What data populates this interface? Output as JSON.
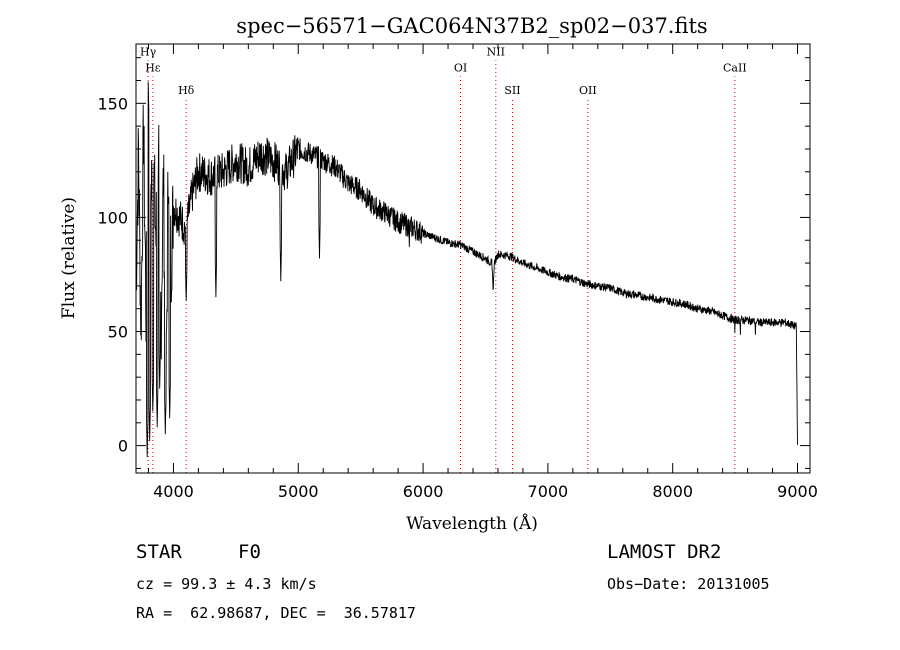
{
  "chart_data": {
    "type": "line",
    "title": "spec−56571−GAC064N37B2_sp02−037.fits",
    "xlabel": "Wavelength (Å)",
    "ylabel": "Flux (relative)",
    "xlim": [
      3700,
      9100
    ],
    "ylim": [
      -12,
      176
    ],
    "x_ticks": [
      4000,
      5000,
      6000,
      7000,
      8000,
      9000
    ],
    "y_ticks": [
      0,
      50,
      100,
      150
    ],
    "grid": false,
    "line_color": "#000000",
    "marker_color": "#cc0000",
    "spectral_lines": [
      {
        "name": "Hγ",
        "wavelength": 3797,
        "label_y": 171
      },
      {
        "name": "Hε",
        "wavelength": 3835,
        "label_y": 164
      },
      {
        "name": "Hδ",
        "wavelength": 4102,
        "label_y": 154
      },
      {
        "name": "OI",
        "wavelength": 6300,
        "label_y": 164
      },
      {
        "name": "NII",
        "wavelength": 6583,
        "label_y": 171
      },
      {
        "name": "SII",
        "wavelength": 6716,
        "label_y": 154
      },
      {
        "name": "OII",
        "wavelength": 7320,
        "label_y": 154
      },
      {
        "name": "CaII",
        "wavelength": 8498,
        "label_y": 164
      }
    ],
    "series": [
      {
        "x": [
          3700,
          3720,
          3740,
          3760,
          3780,
          3800,
          3820,
          3840,
          3860,
          3880,
          3900,
          3920,
          3940,
          3960,
          3980,
          4000,
          4050,
          4100,
          4150,
          4200,
          4300,
          4400,
          4500,
          4600,
          4700,
          4800,
          4900,
          5000,
          5100,
          5200,
          5300,
          5400,
          5500,
          5600,
          5700,
          5800,
          5900,
          6000,
          6100,
          6200,
          6300,
          6400,
          6500,
          6550,
          6562,
          6570,
          6600,
          6700,
          6800,
          6900,
          7000,
          7100,
          7200,
          7300,
          7400,
          7500,
          7600,
          7700,
          7800,
          7900,
          8000,
          8100,
          8200,
          8300,
          8400,
          8500,
          8600,
          8700,
          8800,
          8900,
          8950,
          8990,
          9000
        ],
        "y": [
          70,
          130,
          50,
          140,
          60,
          160,
          110,
          125,
          90,
          140,
          50,
          120,
          20,
          130,
          80,
          105,
          100,
          95,
          110,
          120,
          118,
          120,
          125,
          122,
          128,
          125,
          120,
          130,
          128,
          125,
          122,
          115,
          112,
          105,
          102,
          98,
          96,
          93,
          91,
          89,
          88,
          85,
          82,
          80,
          68,
          80,
          84,
          83,
          80,
          78,
          76,
          74,
          73,
          71,
          70,
          69,
          67,
          66,
          65,
          64,
          63,
          62,
          60,
          59,
          57,
          55,
          55,
          54,
          54,
          54,
          53,
          52,
          0
        ],
        "dips": [
          {
            "x": 3790,
            "y": -5
          },
          {
            "x": 3810,
            "y": 2
          },
          {
            "x": 3835,
            "y": 15
          },
          {
            "x": 3870,
            "y": 8
          },
          {
            "x": 3890,
            "y": 25
          },
          {
            "x": 3935,
            "y": 5
          },
          {
            "x": 3970,
            "y": 12
          },
          {
            "x": 4102,
            "y": 62
          },
          {
            "x": 4340,
            "y": 65
          },
          {
            "x": 4860,
            "y": 72
          },
          {
            "x": 5170,
            "y": 82
          },
          {
            "x": 5890,
            "y": 87
          },
          {
            "x": 6563,
            "y": 68
          },
          {
            "x": 8498,
            "y": 48
          },
          {
            "x": 8542,
            "y": 47
          },
          {
            "x": 8662,
            "y": 47
          }
        ]
      }
    ]
  },
  "footer": {
    "object_class": "STAR",
    "subclass": "F0",
    "survey": "LAMOST DR2",
    "cz": "cz = 99.3 ± 4.3 km/s",
    "obs_date": "Obs−Date: 20131005",
    "coords": "RA =  62.98687, DEC =  36.57817"
  }
}
